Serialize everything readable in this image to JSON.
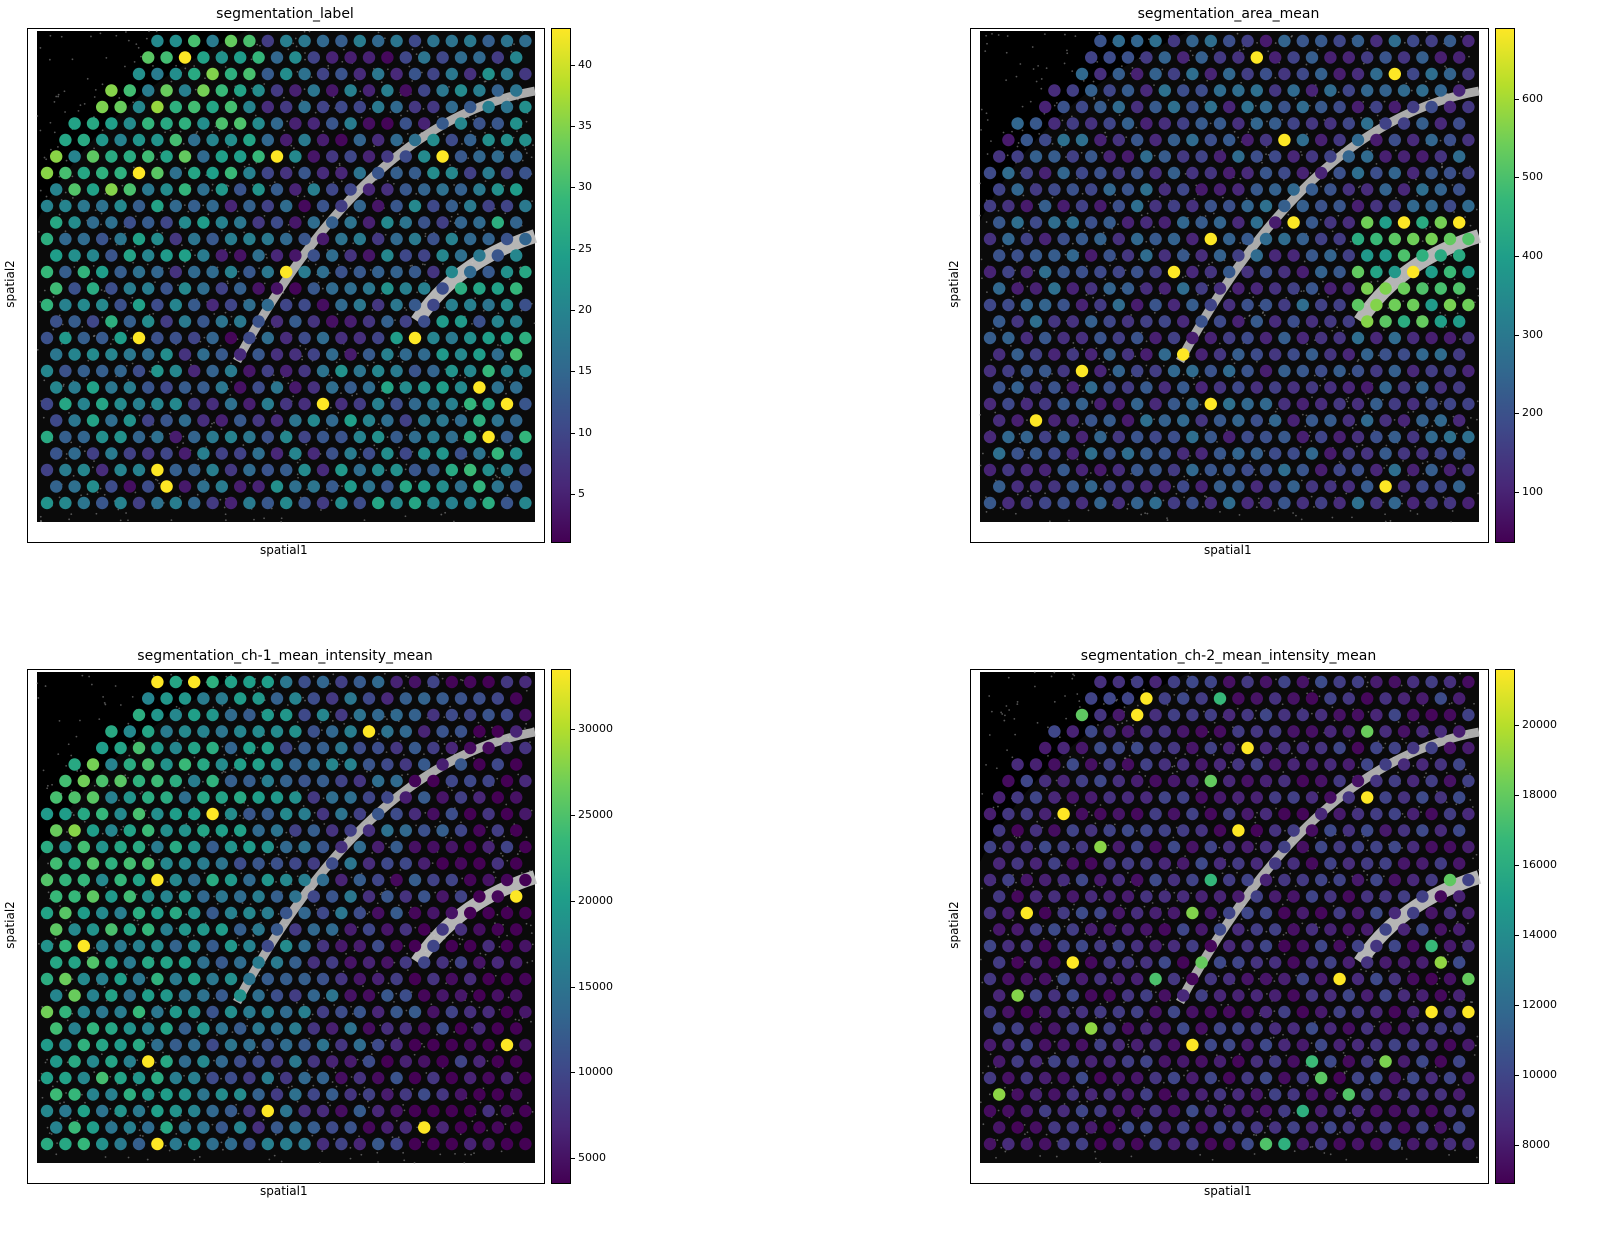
{
  "colors": {
    "viridis": [
      "#440154",
      "#482878",
      "#3e4989",
      "#31688e",
      "#26828e",
      "#1f9e89",
      "#35b779",
      "#6ece58",
      "#b5de2b",
      "#fde725"
    ],
    "tissue_background": "#0a0a0a",
    "stain": "#c8c8c8"
  },
  "chart_data": [
    {
      "type": "scatter",
      "title": "segmentation_label",
      "xlabel": "spatial1",
      "ylabel": "spatial2",
      "colorbar": {
        "min": 1,
        "max": 43,
        "ticks": [
          5,
          10,
          15,
          20,
          25,
          30,
          35,
          40
        ]
      },
      "value_pattern": "mostly 10-30 with high-valued clusters (35-43) upper-left and along the curved bright band"
    },
    {
      "type": "scatter",
      "title": "segmentation_area_mean",
      "xlabel": "spatial1",
      "ylabel": "spatial2",
      "colorbar": {
        "min": 35,
        "max": 690,
        "ticks": [
          100,
          200,
          300,
          400,
          500,
          600
        ]
      },
      "value_pattern": "mostly 100-350 with high values (550-690) along the right-side bright band"
    },
    {
      "type": "scatter",
      "title": "segmentation_ch-1_mean_intensity_mean",
      "xlabel": "spatial1",
      "ylabel": "spatial2",
      "colorbar": {
        "min": 3500,
        "max": 33500,
        "ticks": [
          5000,
          10000,
          15000,
          20000,
          25000,
          30000
        ]
      },
      "value_pattern": "high (20000-33000) in the left half and top, low (4000-9000) in the lower right"
    },
    {
      "type": "scatter",
      "title": "segmentation_ch-2_mean_intensity_mean",
      "xlabel": "spatial1",
      "ylabel": "spatial2",
      "colorbar": {
        "min": 6900,
        "max": 21600,
        "ticks": [
          8000,
          10000,
          12000,
          14000,
          16000,
          18000,
          20000
        ]
      },
      "value_pattern": "mostly low (7000-11000) with elevated values (16000-21600) along the bright bands"
    }
  ]
}
